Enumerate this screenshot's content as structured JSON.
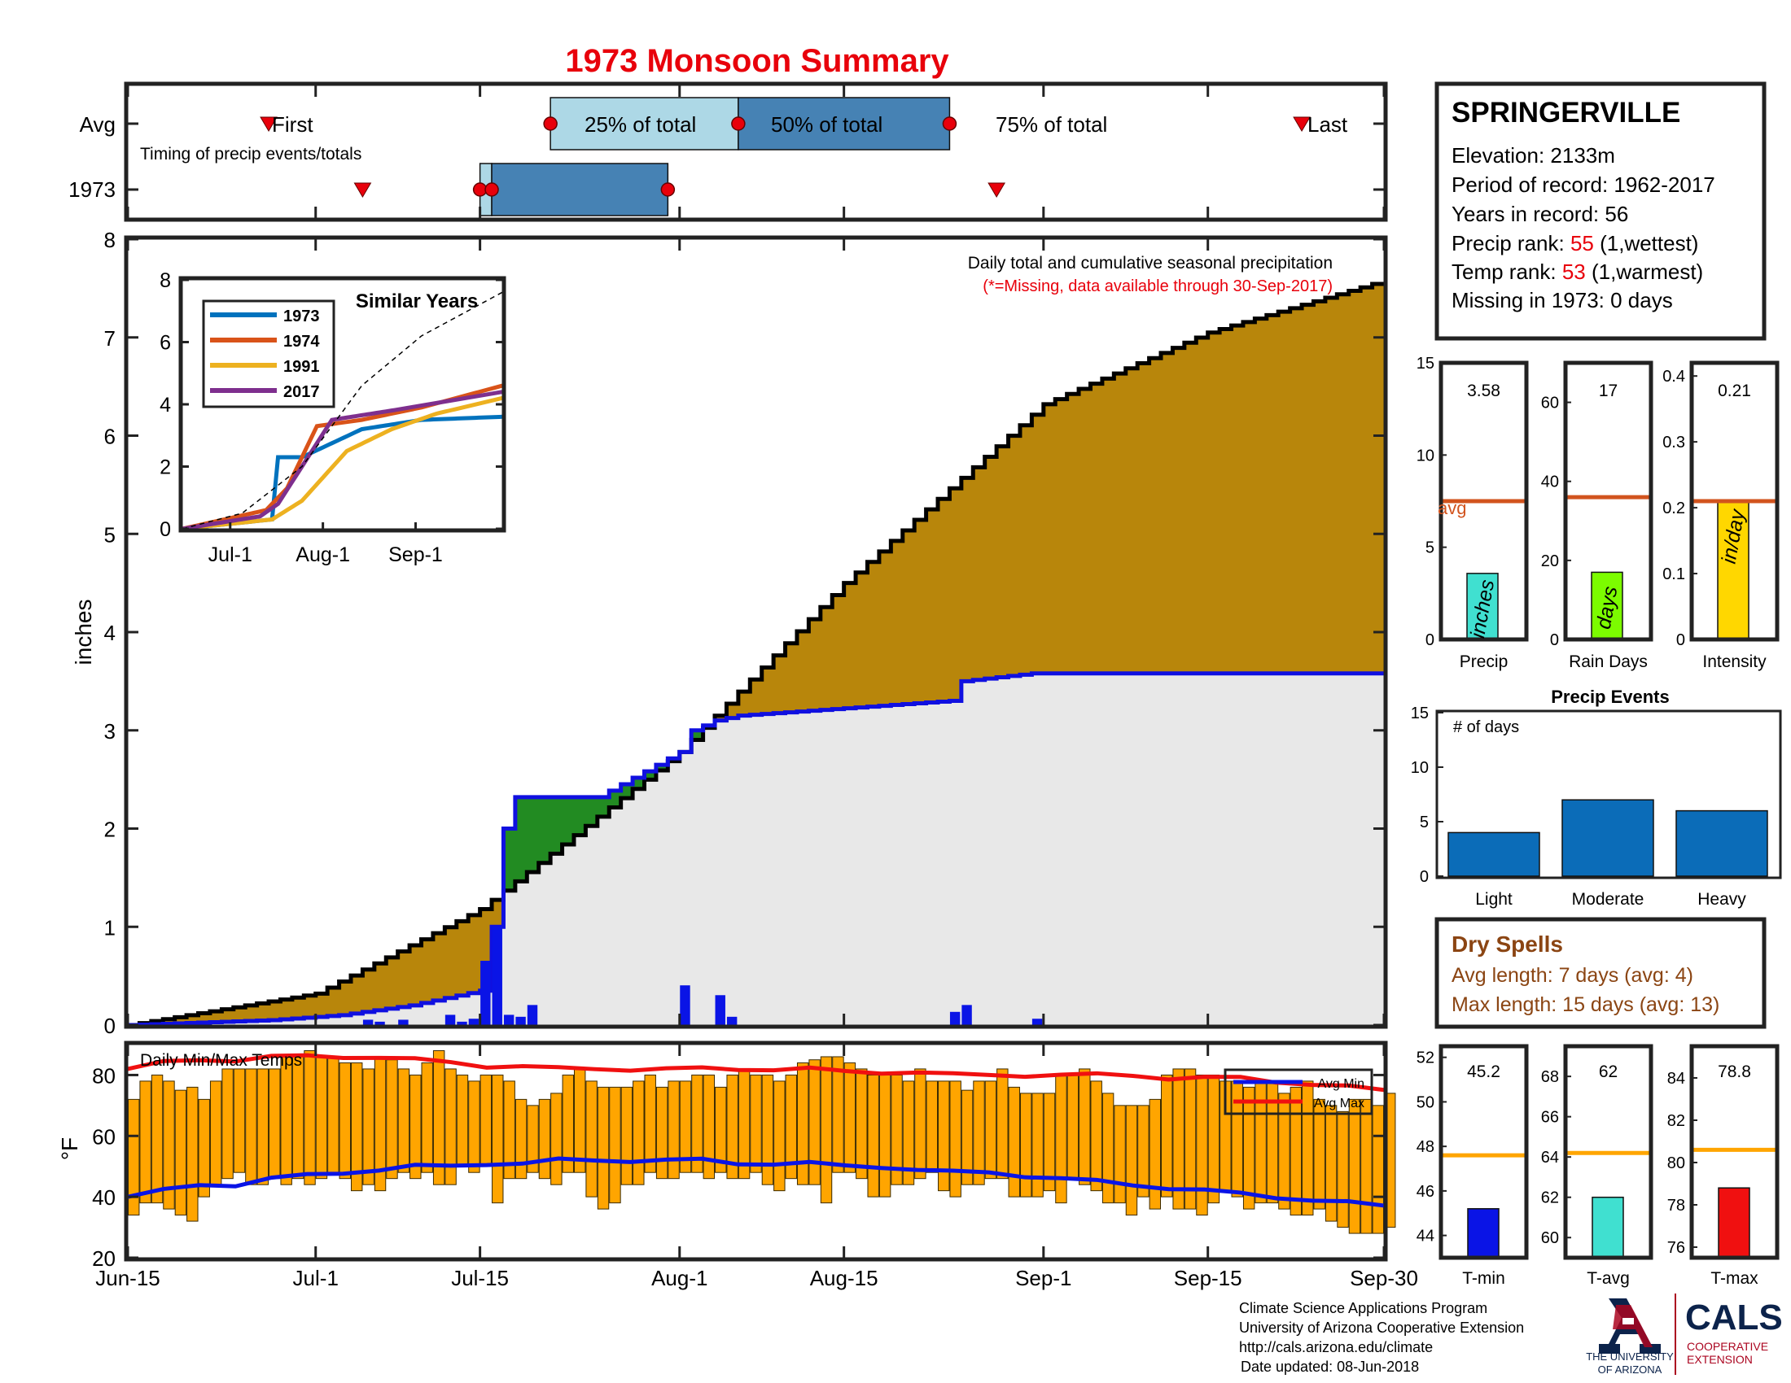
{
  "title": "1973 Monsoon Summary",
  "colors": {
    "title": "#e8000b",
    "cum_avg_fill": "#b8860b",
    "cum_obs_fill": "#e8e8e8",
    "obs_line": "#1010e0",
    "above_fill": "#228b22",
    "daily_bar": "#0a14e6",
    "temp_bar": "#ffa500",
    "avg_min_line": "#0a14e6",
    "avg_max_line": "#f01010",
    "pct25": "#add8e6",
    "pct50": "#4682b4",
    "marker": "#e8000b",
    "bar_precip": "#40e0d0",
    "bar_raindays": "#7cfc00",
    "bar_intensity": "#ffd700",
    "avg_line_top": "#d2541e",
    "avg_line_temp": "#ffa500",
    "events_bar": "#0b6cb8",
    "tmin_bar": "#0a14e6",
    "tavg_bar": "#40e0d0",
    "tmax_bar": "#f01010",
    "dry_text": "#8b4513",
    "rank_red": "#e8000b",
    "ua_blue": "#0c234b",
    "ua_red": "#ab0520"
  },
  "timing": {
    "row_labels": [
      "Avg",
      "1973"
    ],
    "subtitle": "Timing of precip events/totals",
    "avg_first_label": "First",
    "avg_last_label": "Last",
    "pct25_label": "25% of total",
    "pct50_label": "50% of total",
    "pct75_label": "75% of total",
    "avg_days": {
      "first": "Jun-27",
      "p25": "Jul-21",
      "p50": "Aug-6",
      "p75": "Aug-24",
      "last": "Sep-23"
    },
    "obs_days": {
      "first": "Jul-5",
      "p25": "Jul-15",
      "p50": "Jul-16",
      "p75": "Jul-31",
      "last": "Aug-28"
    }
  },
  "main_chart": {
    "ylabel": "inches",
    "annotation": "Daily total and cumulative seasonal precipitation",
    "missing_note": "(*=Missing, data available through 30-Sep-2017)",
    "yticks": [
      "0",
      "1",
      "2",
      "3",
      "4",
      "5",
      "6",
      "7",
      "8"
    ],
    "ylim": [
      0,
      8
    ],
    "xticks": [
      "Jun-15",
      "Jul-1",
      "Jul-15",
      "Aug-1",
      "Aug-15",
      "Sep-1",
      "Sep-15",
      "Sep-30"
    ]
  },
  "inset": {
    "title": "Similar Years",
    "legend": [
      "1973",
      "1974",
      "1991",
      "2017"
    ],
    "legend_colors": [
      "#0072bd",
      "#d95319",
      "#edb120",
      "#7e2f8e"
    ],
    "yticks": [
      "0",
      "2",
      "4",
      "6",
      "8"
    ],
    "xticks": [
      "Jul-1",
      "Aug-1",
      "Sep-1"
    ]
  },
  "temp_chart": {
    "label": "Daily Min/Max Temps",
    "ylabel": "°F",
    "yticks": [
      "20",
      "40",
      "60",
      "80"
    ],
    "ylim": [
      20,
      90
    ],
    "legend": [
      "Avg Min",
      "Avg Max"
    ]
  },
  "station": {
    "name": "SPRINGERVILLE",
    "elevation": "Elevation: 2133m",
    "period": "Period of record: 1962-2017",
    "years": "Years in record: 56",
    "precip_rank_label": "Precip rank: ",
    "precip_rank": "55",
    "precip_rank_suffix": " (1,wettest)",
    "temp_rank_label": "Temp rank: ",
    "temp_rank": "53",
    "temp_rank_suffix": " (1,warmest)",
    "missing": "Missing in 1973: 0 days"
  },
  "summary_bars": {
    "precip": {
      "value": 3.58,
      "label": "3.58",
      "avg": 7.5,
      "unit": "inches",
      "xlabel": "Precip",
      "ylim": [
        0,
        15
      ],
      "yticks": [
        "0",
        "5",
        "10",
        "15"
      ],
      "avg_label": "avg"
    },
    "raindays": {
      "value": 17,
      "label": "17",
      "avg": 36,
      "unit": "days",
      "xlabel": "Rain Days",
      "ylim": [
        0,
        70
      ],
      "yticks": [
        "0",
        "20",
        "40",
        "60"
      ]
    },
    "intensity": {
      "value": 0.21,
      "label": "0.21",
      "avg": 0.21,
      "unit": "in/day",
      "xlabel": "Intensity",
      "ylim": [
        0,
        0.42
      ],
      "yticks": [
        "0",
        "0.1",
        "0.2",
        "0.3",
        "0.4"
      ]
    }
  },
  "events": {
    "title": "Precip Events",
    "ylabel_note": "# of days",
    "categories": [
      "Light",
      "Moderate",
      "Heavy"
    ],
    "values": [
      4,
      7,
      6
    ],
    "ylim": [
      0,
      15
    ],
    "yticks": [
      "0",
      "5",
      "10",
      "15"
    ]
  },
  "dry_spells": {
    "title": "Dry Spells",
    "avg_length": "Avg length: 7 days (avg: 4)",
    "max_length": "Max length: 15 days (avg: 13)"
  },
  "temp_bars": {
    "tmin": {
      "value": 45.2,
      "label": "45.2",
      "avg": 47.6,
      "xlabel": "T-min",
      "ylim": [
        43,
        52.5
      ],
      "yticks": [
        "44",
        "46",
        "48",
        "50",
        "52"
      ]
    },
    "tavg": {
      "value": 62,
      "label": "62",
      "avg": 64.2,
      "xlabel": "T-avg",
      "ylim": [
        59,
        69.5
      ],
      "yticks": [
        "60",
        "62",
        "64",
        "66",
        "68"
      ]
    },
    "tmax": {
      "value": 78.8,
      "label": "78.8",
      "avg": 80.6,
      "xlabel": "T-max",
      "ylim": [
        75.5,
        85.5
      ],
      "yticks": [
        "76",
        "78",
        "80",
        "82",
        "84"
      ]
    }
  },
  "footer": {
    "line1": "Climate Science Applications Program",
    "line2": "University of Arizona Cooperative Extension",
    "line3": "http://cals.arizona.edu/climate",
    "line4": "Date updated: 08-Jun-2018",
    "logo_text1": "THE UNIVERSITY",
    "logo_text2": "OF ARIZONA",
    "cals": "CALS",
    "cals_sub1": "COOPERATIVE",
    "cals_sub2": "EXTENSION"
  },
  "chart_data": [
    {
      "type": "area",
      "title": "",
      "ylabel": "inches",
      "x_range": [
        "Jun-15",
        "Sep-30"
      ],
      "ylim": [
        0,
        8
      ],
      "series": [
        {
          "name": "",
          "kind": "cumulative-average",
          "x": [
            0,
            16,
            30,
            47,
            61,
            78,
            92,
            107
          ],
          "values": [
            0,
            0.32,
            1.18,
            2.78,
            4.5,
            6.32,
            7.05,
            7.58
          ]
        },
        {
          "name": "",
          "kind": "cumulative-1973",
          "x": [
            0,
            12,
            18,
            24,
            30,
            31,
            32,
            33,
            40,
            47,
            48,
            50,
            52,
            70,
            71,
            77,
            107
          ],
          "values": [
            0,
            0.05,
            0.1,
            0.2,
            0.35,
            1.0,
            2.0,
            2.32,
            2.32,
            2.78,
            3.0,
            3.1,
            3.15,
            3.3,
            3.5,
            3.58,
            3.58
          ]
        }
      ]
    },
    {
      "type": "bar",
      "title": "",
      "ylabel": "inches",
      "x_days": [
        20,
        21,
        23,
        27,
        28,
        29,
        30,
        31,
        32,
        33,
        34,
        47,
        50,
        51,
        70,
        71,
        77
      ],
      "values": [
        0.05,
        0.03,
        0.05,
        0.1,
        0.03,
        0.06,
        0.65,
        1.0,
        0.1,
        0.08,
        0.2,
        0.4,
        0.3,
        0.08,
        0.13,
        0.2,
        0.06
      ]
    },
    {
      "type": "line",
      "title": "Similar Years",
      "xticks": [
        "Jul-1",
        "Aug-1",
        "Sep-1"
      ],
      "ylim": [
        0,
        8
      ],
      "series": [
        {
          "name": "1973",
          "x": [
            0,
            30,
            32,
            40,
            60,
            80,
            107
          ],
          "values": [
            0,
            0.3,
            2.3,
            2.3,
            3.2,
            3.5,
            3.6
          ]
        },
        {
          "name": "1974",
          "x": [
            0,
            28,
            35,
            45,
            60,
            80,
            107
          ],
          "values": [
            0,
            0.6,
            1.3,
            3.3,
            3.5,
            3.9,
            4.6
          ]
        },
        {
          "name": "1991",
          "x": [
            0,
            30,
            40,
            55,
            70,
            85,
            107
          ],
          "values": [
            0,
            0.3,
            0.9,
            2.5,
            3.2,
            3.7,
            4.2
          ]
        },
        {
          "name": "2017",
          "x": [
            0,
            26,
            32,
            40,
            50,
            70,
            107
          ],
          "values": [
            0,
            0.4,
            0.8,
            2.0,
            3.5,
            3.8,
            4.4
          ]
        },
        {
          "name": "",
          "kind": "average",
          "x": [
            0,
            20,
            40,
            60,
            80,
            107
          ],
          "values": [
            0,
            0.5,
            2.0,
            4.6,
            6.2,
            7.6
          ]
        }
      ]
    },
    {
      "type": "bar",
      "title": "Daily Min/Max Temps",
      "ylabel": "°F",
      "ylim": [
        20,
        90
      ],
      "tmax": [
        72,
        78,
        80,
        78,
        75,
        76,
        72,
        78,
        82,
        82,
        82,
        82,
        82,
        86,
        86,
        88,
        86,
        86,
        84,
        84,
        82,
        86,
        85,
        82,
        80,
        84,
        88,
        82,
        80,
        78,
        80,
        80,
        78,
        72,
        70,
        72,
        74,
        80,
        82,
        78,
        76,
        76,
        76,
        78,
        80,
        76,
        78,
        78,
        80,
        80,
        76,
        80,
        82,
        80,
        80,
        78,
        80,
        84,
        85,
        86,
        86,
        84,
        82,
        80,
        80,
        80,
        78,
        82,
        78,
        78,
        78,
        75,
        78,
        78,
        82,
        76,
        74,
        74,
        74,
        80,
        80,
        82,
        78,
        74,
        70,
        70,
        70,
        72,
        80,
        82,
        82,
        80,
        80,
        78,
        78,
        76,
        78,
        78,
        74,
        76,
        78,
        72,
        70,
        68,
        72,
        72,
        70,
        74
      ],
      "tmin": [
        34,
        38,
        38,
        36,
        34,
        32,
        40,
        44,
        46,
        48,
        44,
        44,
        46,
        44,
        46,
        44,
        46,
        48,
        46,
        42,
        44,
        42,
        46,
        48,
        46,
        48,
        44,
        44,
        50,
        48,
        50,
        38,
        46,
        46,
        48,
        46,
        44,
        48,
        48,
        40,
        36,
        38,
        44,
        44,
        48,
        46,
        46,
        48,
        48,
        46,
        48,
        46,
        46,
        48,
        44,
        42,
        46,
        44,
        44,
        38,
        48,
        48,
        46,
        40,
        40,
        44,
        44,
        46,
        48,
        42,
        40,
        44,
        44,
        46,
        46,
        40,
        40,
        40,
        42,
        38,
        46,
        44,
        42,
        38,
        38,
        34,
        40,
        36,
        40,
        36,
        36,
        34,
        38,
        42,
        40,
        36,
        38,
        38,
        36,
        34,
        34,
        36,
        32,
        30,
        28,
        28,
        28,
        30
      ],
      "avg_min": [
        40,
        42,
        44,
        44,
        46,
        47,
        48,
        49,
        50,
        50,
        51,
        51,
        52,
        52,
        52,
        52,
        52,
        51,
        51,
        51,
        50,
        50,
        49,
        48,
        48,
        47,
        46,
        45,
        44,
        43,
        42,
        41,
        40,
        39,
        38,
        37
      ],
      "avg_max": [
        82,
        84,
        85,
        85,
        86,
        86,
        86,
        86,
        85,
        84,
        83,
        83,
        82,
        82,
        82,
        82,
        82,
        82,
        82,
        82,
        81,
        81,
        81,
        80,
        80,
        80,
        80,
        80,
        80,
        79,
        79,
        79,
        78,
        77,
        76,
        75
      ]
    }
  ]
}
